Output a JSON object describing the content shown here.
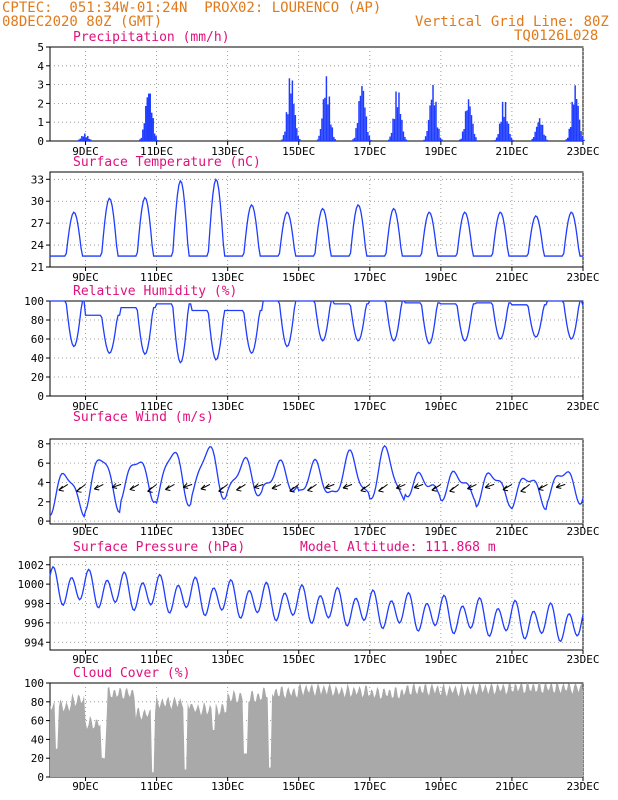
{
  "header": {
    "line1_left": "CPTEC:  051:34W-01:24N  PROX02: LOURENCO (AP)",
    "line2_left": "08DEC2020 80Z (GMT)",
    "line2_right": "Vertical Grid Line: 80Z",
    "line3_right": "TQ0126L028"
  },
  "colors": {
    "series": "#1f3cff",
    "cloud": "#a9a9a9",
    "title": "#e0107e",
    "header": "#e07a1a"
  },
  "x_axis": {
    "tick_labels": [
      "9DEC",
      "11DEC",
      "13DEC",
      "15DEC",
      "17DEC",
      "19DEC",
      "21DEC",
      "23DEC"
    ],
    "tick_days": [
      9,
      11,
      13,
      15,
      17,
      19,
      21,
      23
    ],
    "range_days": [
      8.0,
      23.0
    ]
  },
  "chart_data": [
    {
      "type": "bar",
      "name": "precipitation",
      "title": "Precipitation (mm/h)",
      "ylim": [
        0,
        5
      ],
      "yticks": [
        0,
        1,
        2,
        3,
        4,
        5
      ],
      "bursts": [
        {
          "day": 9.0,
          "peak": 0.4
        },
        {
          "day": 10.8,
          "peak": 3.0
        },
        {
          "day": 14.8,
          "peak": 3.7
        },
        {
          "day": 15.8,
          "peak": 3.5
        },
        {
          "day": 16.8,
          "peak": 3.3
        },
        {
          "day": 17.8,
          "peak": 2.9
        },
        {
          "day": 18.8,
          "peak": 3.1
        },
        {
          "day": 19.8,
          "peak": 2.4
        },
        {
          "day": 20.8,
          "peak": 2.3
        },
        {
          "day": 21.8,
          "peak": 1.3
        },
        {
          "day": 22.8,
          "peak": 3.1
        }
      ]
    },
    {
      "type": "line",
      "name": "temperature",
      "title": "Surface Temperature (nC)",
      "ylim": [
        21,
        34
      ],
      "yticks": [
        21,
        24,
        27,
        30,
        33
      ],
      "base": 22.5,
      "daily_max": [
        28.5,
        30.4,
        30.5,
        32.8,
        33.0,
        29.5,
        28.5,
        29.0,
        29.5,
        29.0,
        28.5,
        28.5,
        28.5,
        28.0,
        28.5,
        28.0
      ]
    },
    {
      "type": "line",
      "name": "humidity",
      "title": "Relative Humidity (%)",
      "ylim": [
        0,
        100
      ],
      "yticks": [
        0,
        20,
        40,
        60,
        80,
        100
      ],
      "daily_min": [
        52,
        45,
        44,
        35,
        38,
        45,
        52,
        58,
        58,
        58,
        55,
        58,
        60,
        62,
        60,
        68
      ],
      "daily_max": [
        100,
        85,
        93,
        97,
        90,
        90,
        100,
        100,
        97,
        100,
        98,
        97,
        98,
        96,
        100,
        95
      ]
    },
    {
      "type": "line",
      "name": "wind",
      "title": "Surface Wind (m/s)",
      "ylim": [
        -0.3,
        8.5
      ],
      "yticks": [
        0,
        2,
        4,
        6,
        8
      ],
      "daily_max": [
        5.0,
        6.8,
        6.5,
        7.3,
        7.6,
        6.2,
        5.8,
        5.8,
        6.8,
        7.3,
        4.6,
        4.9,
        5.0,
        4.7,
        5.3,
        5.0
      ],
      "daily_min": [
        1.0,
        1.5,
        2.5,
        2.0,
        2.5,
        2.7,
        3.0,
        2.5,
        2.5,
        2.0,
        2.8,
        2.5,
        2.0,
        1.8,
        2.3,
        2.5
      ]
    },
    {
      "type": "line",
      "name": "pressure",
      "title": "Surface Pressure (hPa)",
      "annotation": "Model Altitude: 111.868 m",
      "ylim": [
        993.2,
        1002.8
      ],
      "yticks": [
        994,
        996,
        998,
        1000,
        1002
      ],
      "trend_start": 999.8,
      "trend_end": 995.8,
      "amplitude": 1.9
    },
    {
      "type": "area",
      "name": "cloud",
      "title": "Cloud Cover (%)",
      "ylim": [
        0,
        100
      ],
      "yticks": [
        0,
        20,
        40,
        60,
        80,
        100
      ],
      "levels": [
        {
          "from": 8.0,
          "to": 8.6,
          "value": 78
        },
        {
          "from": 8.6,
          "to": 9.0,
          "value": 85
        },
        {
          "from": 9.0,
          "to": 9.6,
          "value": 60
        },
        {
          "from": 9.6,
          "to": 10.4,
          "value": 92
        },
        {
          "from": 10.4,
          "to": 11.0,
          "value": 70
        },
        {
          "from": 11.0,
          "to": 12.0,
          "value": 82
        },
        {
          "from": 12.0,
          "to": 13.0,
          "value": 75
        },
        {
          "from": 13.0,
          "to": 14.0,
          "value": 88
        },
        {
          "from": 14.0,
          "to": 15.0,
          "value": 93
        },
        {
          "from": 15.0,
          "to": 16.0,
          "value": 96
        },
        {
          "from": 16.0,
          "to": 17.0,
          "value": 94
        },
        {
          "from": 17.0,
          "to": 18.0,
          "value": 92
        },
        {
          "from": 18.0,
          "to": 19.0,
          "value": 96
        },
        {
          "from": 19.0,
          "to": 20.0,
          "value": 95
        },
        {
          "from": 20.0,
          "to": 21.0,
          "value": 97
        },
        {
          "from": 21.0,
          "to": 22.0,
          "value": 98
        },
        {
          "from": 22.0,
          "to": 23.0,
          "value": 98
        }
      ],
      "dips": [
        {
          "day": 8.2,
          "value": 30
        },
        {
          "day": 9.5,
          "value": 20
        },
        {
          "day": 10.9,
          "value": 5
        },
        {
          "day": 11.8,
          "value": 8
        },
        {
          "day": 12.6,
          "value": 50
        },
        {
          "day": 13.5,
          "value": 25
        },
        {
          "day": 14.2,
          "value": 10
        }
      ]
    }
  ]
}
